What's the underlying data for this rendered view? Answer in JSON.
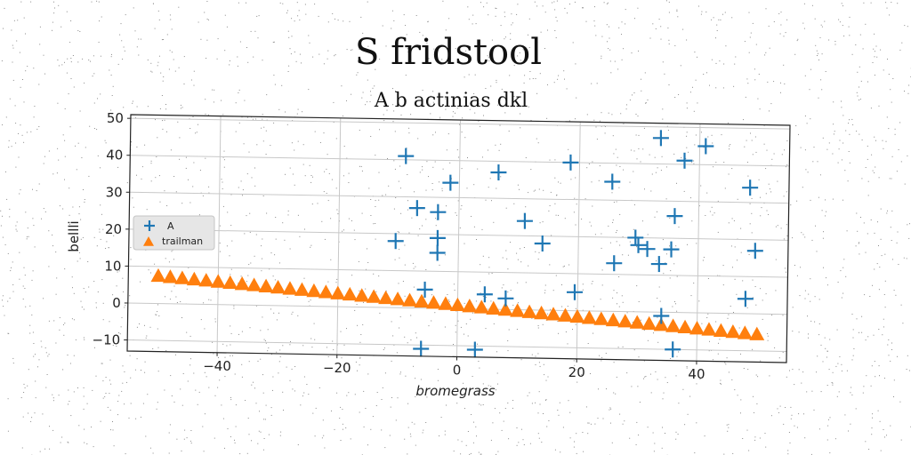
{
  "chart_data": {
    "type": "scatter",
    "title": "S fridstool",
    "subtitle": "A b actinias dkl",
    "xlabel": "bromegrass",
    "ylabel": "bellli",
    "xlim": [
      -55,
      55
    ],
    "ylim": [
      -13,
      51
    ],
    "xticks": [
      -40,
      -20,
      0,
      20,
      40
    ],
    "yticks": [
      -10,
      0,
      10,
      20,
      30,
      40,
      50
    ],
    "xtick_labels": [
      "−40",
      "−20",
      "0",
      "20",
      "40"
    ],
    "ytick_labels": [
      "−10",
      "0",
      "10",
      "20",
      "30",
      "40",
      "50"
    ],
    "grid": true,
    "legend_position": "center-left",
    "series": [
      {
        "name": "A",
        "marker": "plus",
        "color": "#1f77b4",
        "points": [
          [
            -9,
            41
          ],
          [
            -7,
            27
          ],
          [
            -10.5,
            18
          ],
          [
            -1.5,
            34
          ],
          [
            -3.5,
            26
          ],
          [
            -3.5,
            19
          ],
          [
            -3.5,
            15
          ],
          [
            -5.5,
            5
          ],
          [
            -6,
            -11
          ],
          [
            6.5,
            37
          ],
          [
            3,
            -11
          ],
          [
            4.5,
            4
          ],
          [
            8,
            3
          ],
          [
            11,
            24
          ],
          [
            14,
            18
          ],
          [
            18.5,
            40
          ],
          [
            19.5,
            5
          ],
          [
            25.5,
            35
          ],
          [
            26,
            13
          ],
          [
            29.5,
            20
          ],
          [
            30,
            18
          ],
          [
            31.5,
            17
          ],
          [
            33.5,
            13
          ],
          [
            35.5,
            17
          ],
          [
            36,
            26
          ],
          [
            33.5,
            47
          ],
          [
            37.5,
            41
          ],
          [
            41,
            45
          ],
          [
            36,
            -10
          ],
          [
            34,
            -1
          ],
          [
            48.5,
            34
          ],
          [
            49.5,
            17
          ],
          [
            48,
            4
          ]
        ]
      },
      {
        "name": "trailman",
        "marker": "triangle",
        "color": "#ff7f0e",
        "x_start": -50,
        "x_end": 50,
        "count": 51,
        "y_start": 7.5,
        "y_end": -5.5
      }
    ]
  }
}
